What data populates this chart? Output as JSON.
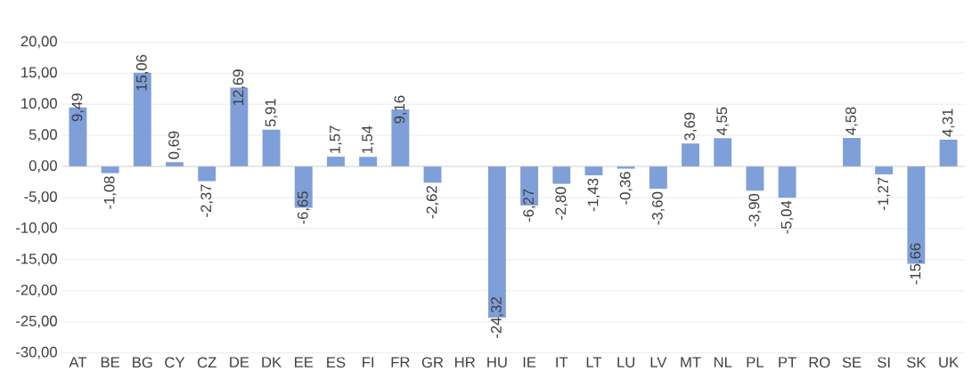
{
  "chart_data": {
    "type": "bar",
    "categories": [
      "AT",
      "BE",
      "BG",
      "CY",
      "CZ",
      "DE",
      "DK",
      "EE",
      "ES",
      "FI",
      "FR",
      "GR",
      "HR",
      "HU",
      "IE",
      "IT",
      "LT",
      "LU",
      "LV",
      "MT",
      "NL",
      "PL",
      "PT",
      "RO",
      "SE",
      "SI",
      "SK",
      "UK"
    ],
    "values": [
      9.49,
      -1.08,
      15.06,
      0.69,
      -2.37,
      12.69,
      5.91,
      -6.65,
      1.57,
      1.54,
      9.16,
      -2.62,
      null,
      -24.32,
      -6.27,
      -2.8,
      -1.43,
      -0.36,
      -3.6,
      3.69,
      4.55,
      -3.9,
      -5.04,
      null,
      4.58,
      -1.27,
      -15.66,
      4.31
    ],
    "value_labels": [
      "9,49",
      "-1,08",
      "15,06",
      "0,69",
      "-2,37",
      "12,69",
      "5,91",
      "-6,65",
      "1,57",
      "1,54",
      "9,16",
      "-2,62",
      null,
      "-24,32",
      "-6,27",
      "-2,80",
      "-1,43",
      "-0,36",
      "-3,60",
      "3,69",
      "4,55",
      "-3,90",
      "-5,04",
      null,
      "4,58",
      "-1,27",
      "-15,66",
      "4,31"
    ],
    "color": "#7f9fd9",
    "ylim": [
      -30,
      20
    ],
    "yticks": [
      {
        "value": -30,
        "label": "-30,00"
      },
      {
        "value": -25,
        "label": "-25,00"
      },
      {
        "value": -20,
        "label": "-20,00"
      },
      {
        "value": -15,
        "label": "-15,00"
      },
      {
        "value": -10,
        "label": "-10,00"
      },
      {
        "value": -5,
        "label": "-5,00"
      },
      {
        "value": 0,
        "label": "0,00"
      },
      {
        "value": 5,
        "label": "5,00"
      },
      {
        "value": 10,
        "label": "10,00"
      },
      {
        "value": 15,
        "label": "15,00"
      },
      {
        "value": 20,
        "label": "20,00"
      }
    ],
    "grid": "y"
  }
}
